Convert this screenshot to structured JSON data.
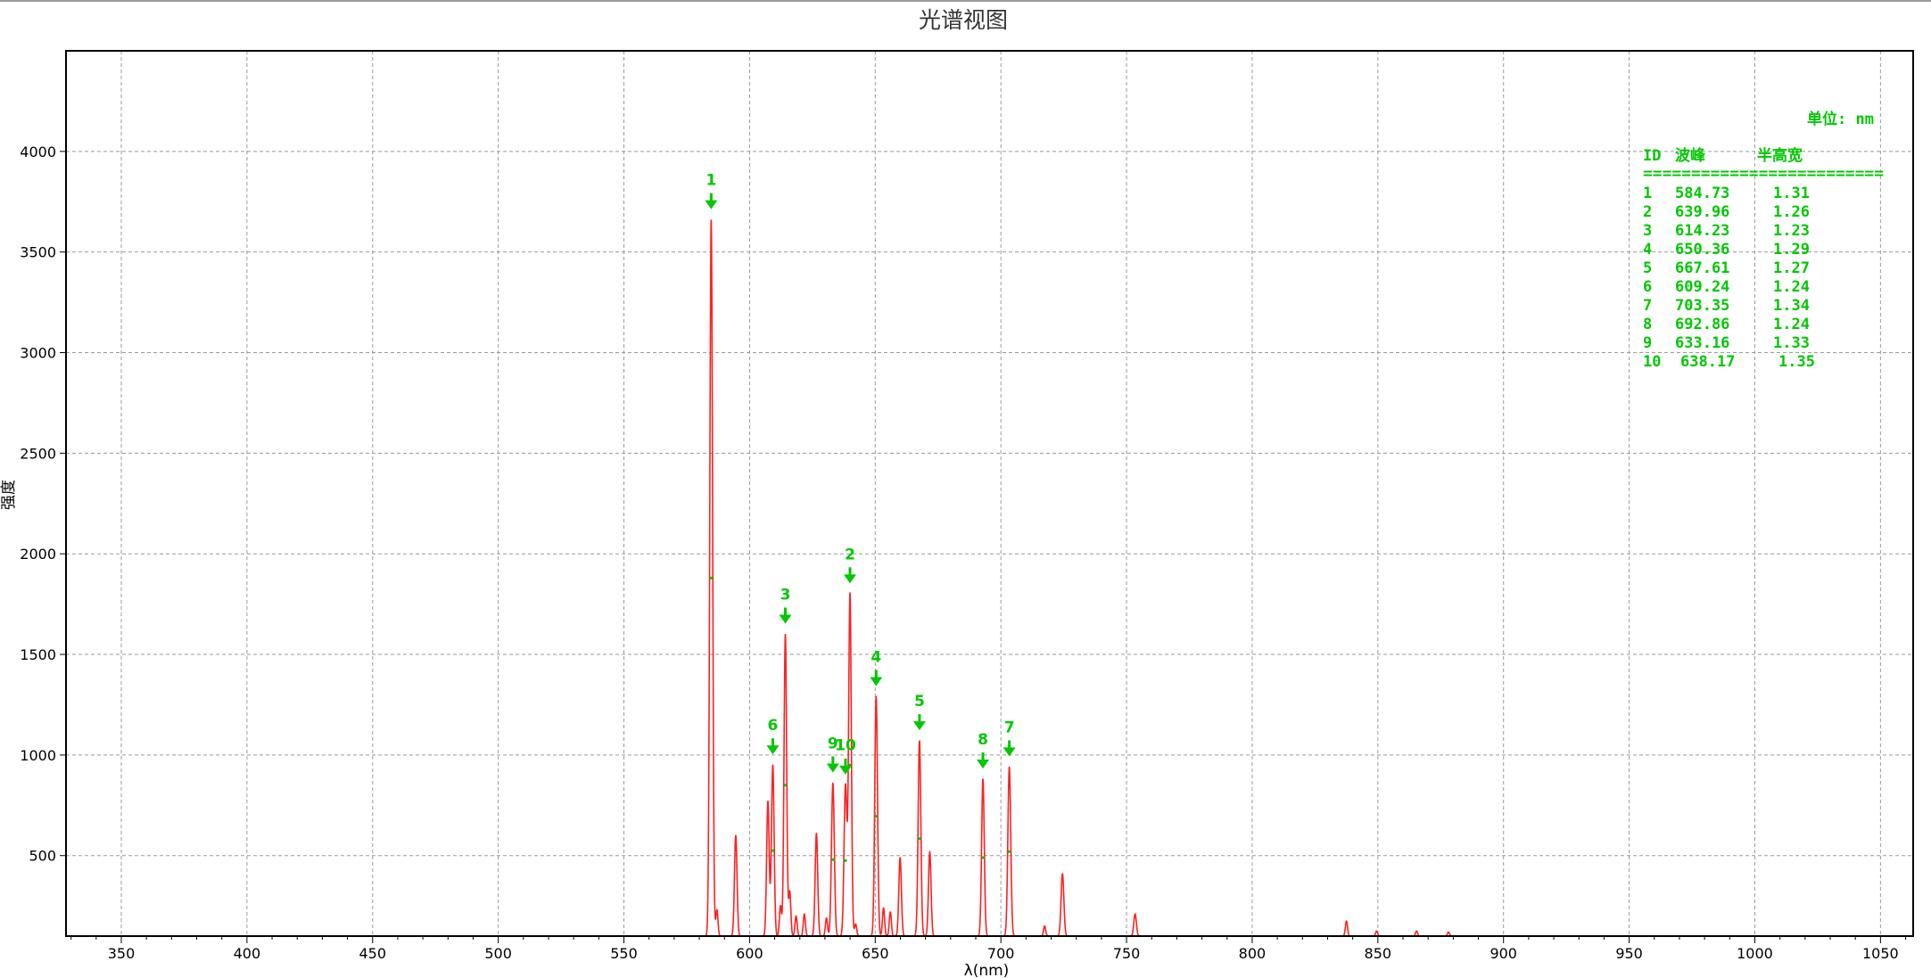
{
  "window": {
    "top_border_color": "#9a9a9a"
  },
  "colors": {
    "series": "#ff2020",
    "peak": "#00c800",
    "grid": "#9a9a9a",
    "axis": "#000000"
  },
  "chart_data": {
    "type": "line",
    "title": "光谱视图",
    "xlabel": "λ(nm)",
    "ylabel": "强度",
    "xlim": [
      328,
      1063
    ],
    "ylim": [
      100,
      4500
    ],
    "x_ticks": [
      350,
      400,
      450,
      500,
      550,
      600,
      650,
      700,
      750,
      800,
      850,
      900,
      950,
      1000,
      1050
    ],
    "y_ticks": [
      500,
      1000,
      1500,
      2000,
      2500,
      3000,
      3500,
      4000
    ],
    "grid": true,
    "series": [
      {
        "color": "#ff2020",
        "lines": [
          {
            "x": 584.73,
            "y": 3660,
            "w": 1.3
          },
          {
            "x": 587.0,
            "y": 230,
            "w": 1.0
          },
          {
            "x": 594.5,
            "y": 600,
            "w": 1.2
          },
          {
            "x": 607.3,
            "y": 770,
            "w": 1.2
          },
          {
            "x": 609.24,
            "y": 950,
            "w": 1.24
          },
          {
            "x": 612.3,
            "y": 250,
            "w": 1.0
          },
          {
            "x": 614.23,
            "y": 1600,
            "w": 1.23
          },
          {
            "x": 616.0,
            "y": 320,
            "w": 1.0
          },
          {
            "x": 618.5,
            "y": 200,
            "w": 1.0
          },
          {
            "x": 621.8,
            "y": 210,
            "w": 1.0
          },
          {
            "x": 626.6,
            "y": 610,
            "w": 1.2
          },
          {
            "x": 630.6,
            "y": 190,
            "w": 1.0
          },
          {
            "x": 633.16,
            "y": 860,
            "w": 1.33
          },
          {
            "x": 638.17,
            "y": 850,
            "w": 1.35
          },
          {
            "x": 639.96,
            "y": 1800,
            "w": 1.26
          },
          {
            "x": 642.2,
            "y": 160,
            "w": 1.0
          },
          {
            "x": 650.36,
            "y": 1290,
            "w": 1.29
          },
          {
            "x": 653.3,
            "y": 240,
            "w": 1.0
          },
          {
            "x": 656.0,
            "y": 220,
            "w": 1.0
          },
          {
            "x": 659.9,
            "y": 490,
            "w": 1.2
          },
          {
            "x": 667.61,
            "y": 1070,
            "w": 1.27
          },
          {
            "x": 671.7,
            "y": 520,
            "w": 1.2
          },
          {
            "x": 692.86,
            "y": 880,
            "w": 1.24
          },
          {
            "x": 703.35,
            "y": 940,
            "w": 1.34
          },
          {
            "x": 717.4,
            "y": 150,
            "w": 1.0
          },
          {
            "x": 724.5,
            "y": 410,
            "w": 1.3
          },
          {
            "x": 753.4,
            "y": 210,
            "w": 1.2
          },
          {
            "x": 837.5,
            "y": 175,
            "w": 1.0
          },
          {
            "x": 849.5,
            "y": 125,
            "w": 1.0
          },
          {
            "x": 865.4,
            "y": 125,
            "w": 1.0
          },
          {
            "x": 878.1,
            "y": 120,
            "w": 1.0
          }
        ]
      }
    ],
    "peak_markers": [
      {
        "label": "1",
        "x": 584.73,
        "y": 3660
      },
      {
        "label": "2",
        "x": 639.96,
        "y": 1800
      },
      {
        "label": "3",
        "x": 614.23,
        "y": 1600
      },
      {
        "label": "4",
        "x": 650.36,
        "y": 1290
      },
      {
        "label": "5",
        "x": 667.61,
        "y": 1070
      },
      {
        "label": "6",
        "x": 609.24,
        "y": 950
      },
      {
        "label": "7",
        "x": 703.35,
        "y": 940
      },
      {
        "label": "8",
        "x": 692.86,
        "y": 880
      },
      {
        "label": "9",
        "x": 633.16,
        "y": 860
      },
      {
        "label": "10",
        "x": 638.17,
        "y": 850
      }
    ],
    "peak_table": {
      "unit_label": "单位: nm",
      "header": [
        "ID",
        "波峰",
        "半高宽"
      ],
      "separator": "=========================",
      "rows": [
        [
          "1",
          "584.73",
          "1.31"
        ],
        [
          "2",
          "639.96",
          "1.26"
        ],
        [
          "3",
          "614.23",
          "1.23"
        ],
        [
          "4",
          "650.36",
          "1.29"
        ],
        [
          "5",
          "667.61",
          "1.27"
        ],
        [
          "6",
          "609.24",
          "1.24"
        ],
        [
          "7",
          "703.35",
          "1.34"
        ],
        [
          "8",
          "692.86",
          "1.24"
        ],
        [
          "9",
          "633.16",
          "1.33"
        ],
        [
          "10",
          "638.17",
          "1.35"
        ]
      ]
    }
  }
}
